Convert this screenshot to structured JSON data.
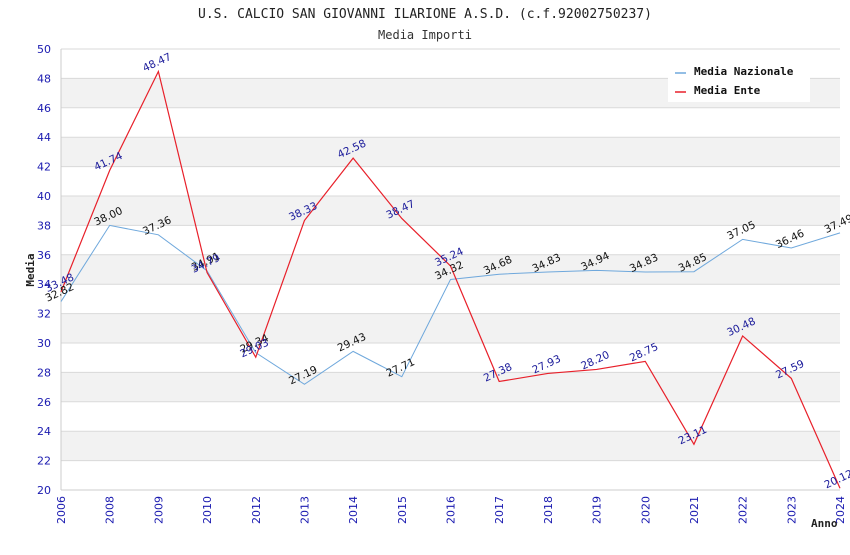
{
  "chart_data": {
    "type": "line",
    "title": "U.S. CALCIO SAN GIOVANNI ILARIONE A.S.D. (c.f.92002750237)",
    "subtitle": "Media Importi",
    "xlabel": "Anno",
    "ylabel": "Media",
    "ylim": [
      20,
      50
    ],
    "yticks": [
      "20",
      "22",
      "24",
      "26",
      "28",
      "30",
      "32",
      "34",
      "36",
      "38",
      "40",
      "42",
      "44",
      "46",
      "48",
      "50"
    ],
    "categories": [
      "2006",
      "2008",
      "2009",
      "2010",
      "2012",
      "2013",
      "2014",
      "2015",
      "2016",
      "2017",
      "2018",
      "2019",
      "2020",
      "2021",
      "2022",
      "2023",
      "2024"
    ],
    "legend_position": "top-right",
    "series": [
      {
        "name": "Media Nazionale",
        "color": "#6fa8dc",
        "values": [
          32.82,
          38.0,
          37.36,
          34.91,
          29.34,
          27.19,
          29.43,
          27.71,
          34.32,
          34.68,
          34.83,
          34.94,
          34.83,
          34.85,
          37.05,
          36.46,
          37.49
        ],
        "labels": [
          "32.82",
          "38.00",
          "37.36",
          "34.91",
          "29.34",
          "27.19",
          "29.43",
          "27.71",
          "34.32",
          "34.68",
          "34.83",
          "34.94",
          "34.83",
          "34.85",
          "37.05",
          "36.46",
          "37.49"
        ]
      },
      {
        "name": "Media Ente",
        "color": "#e8202a",
        "values": [
          33.48,
          41.74,
          48.47,
          34.79,
          29.03,
          38.33,
          42.58,
          38.47,
          35.24,
          27.38,
          27.93,
          28.2,
          28.75,
          23.11,
          30.48,
          27.59,
          20.12
        ],
        "labels": [
          "33.48",
          "41.74",
          "48.47",
          "34.79",
          "29.03",
          "38.33",
          "42.58",
          "38.47",
          "35.24",
          "27.38",
          "27.93",
          "28.20",
          "28.75",
          "23.11",
          "30.48",
          "27.59",
          "20.12"
        ]
      }
    ]
  }
}
